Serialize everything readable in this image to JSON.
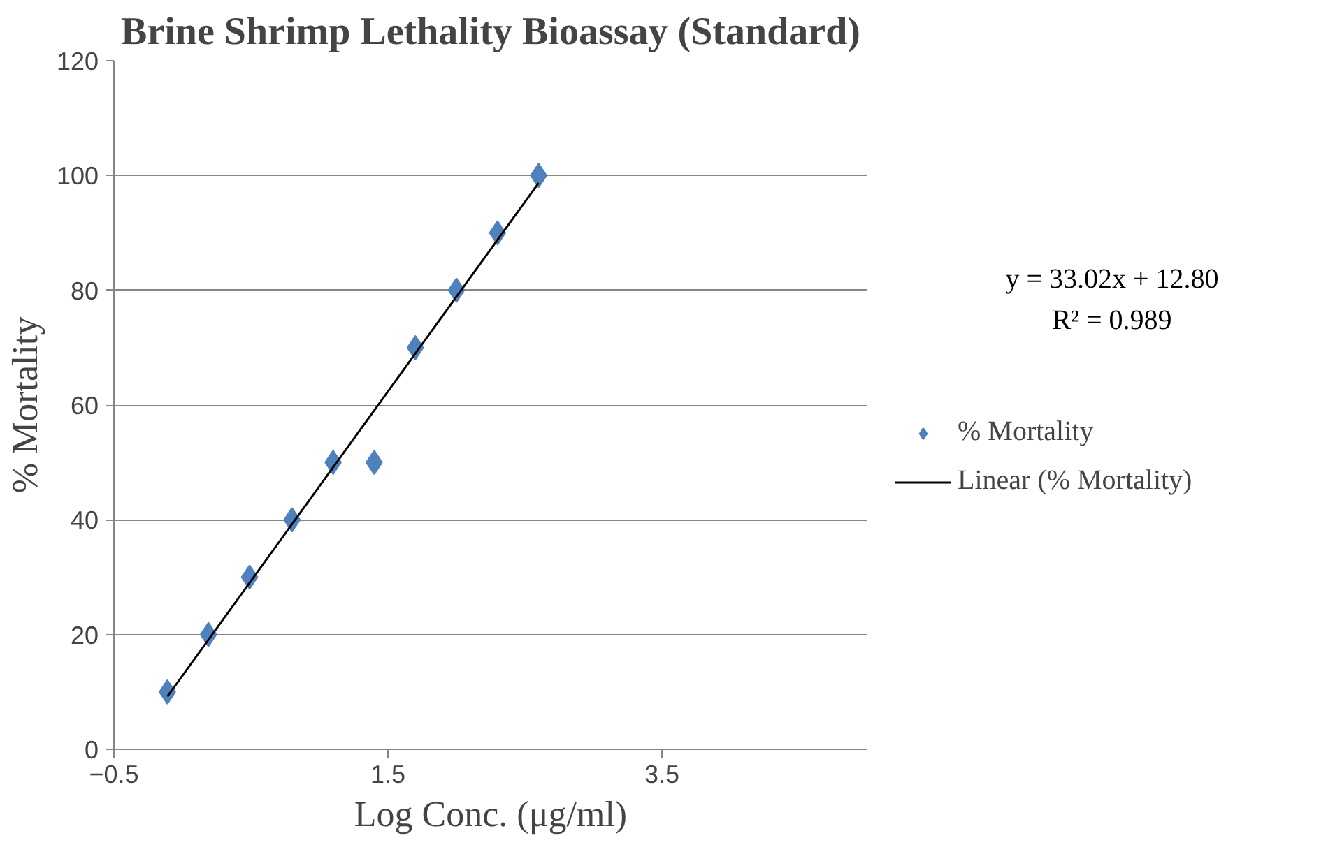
{
  "chart_data": {
    "type": "scatter",
    "title": "Brine Shrimp Lethality Bioassay (Standard)",
    "xlabel": "Log Conc. (μg/ml)",
    "ylabel": "% Mortality",
    "x": [
      -0.11,
      0.19,
      0.49,
      0.8,
      1.1,
      1.4,
      1.7,
      2.0,
      2.3,
      2.6
    ],
    "series": [
      {
        "name": "% Mortality",
        "color": "#4f81bd",
        "values": [
          10,
          20,
          30,
          40,
          50,
          50,
          70,
          80,
          90,
          100
        ],
        "marker": "diamond"
      },
      {
        "name": "Linear (% Mortality)",
        "type": "line",
        "color": "#000000",
        "x": [
          -0.11,
          2.6
        ],
        "values": [
          9.2,
          98.7
        ]
      }
    ],
    "xlim": [
      -0.5,
      5
    ],
    "xticks": [
      -0.5,
      1.5,
      3.5
    ],
    "ylim": [
      0,
      120
    ],
    "yticks": [
      0,
      20,
      40,
      60,
      80,
      100,
      120
    ],
    "grid": "y",
    "legend": "right",
    "annotations": [
      "y = 33.02x + 12.80",
      "R² = 0.989"
    ]
  }
}
